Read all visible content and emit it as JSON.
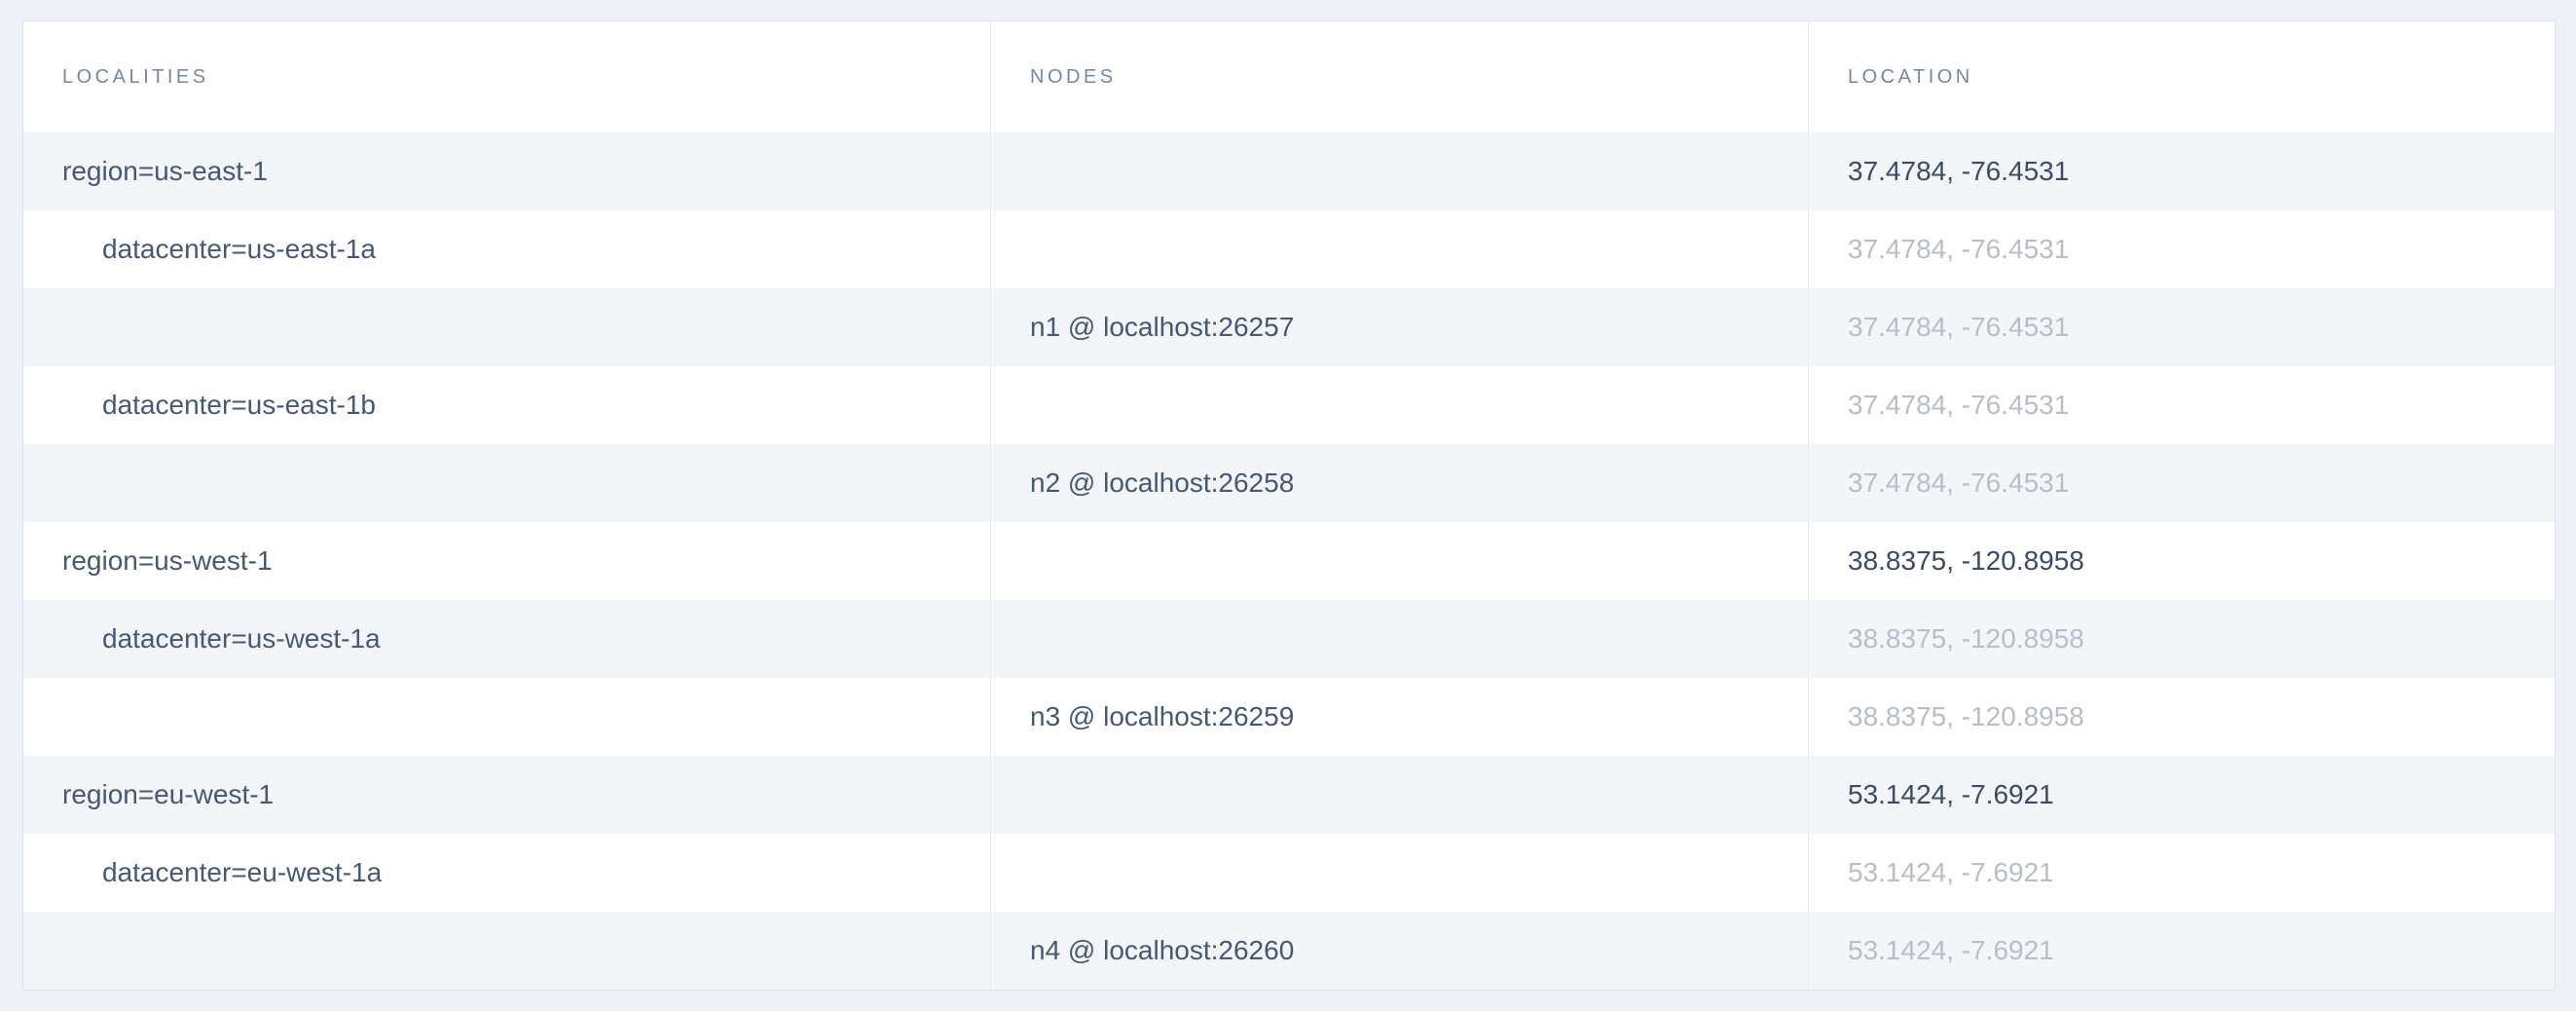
{
  "table": {
    "columns": [
      {
        "key": "localities",
        "label": "LOCALITIES"
      },
      {
        "key": "nodes",
        "label": "NODES"
      },
      {
        "key": "location",
        "label": "LOCATION"
      }
    ],
    "rows": [
      {
        "kind": "region",
        "locality": "region=us-east-1",
        "node": "",
        "location": "37.4784, -76.4531",
        "location_emphasis": "strong"
      },
      {
        "kind": "datacenter",
        "locality": "datacenter=us-east-1a",
        "node": "",
        "location": "37.4784, -76.4531",
        "location_emphasis": "muted"
      },
      {
        "kind": "node",
        "locality": "",
        "node": "n1 @ localhost:26257",
        "location": "37.4784, -76.4531",
        "location_emphasis": "muted"
      },
      {
        "kind": "datacenter",
        "locality": "datacenter=us-east-1b",
        "node": "",
        "location": "37.4784, -76.4531",
        "location_emphasis": "muted"
      },
      {
        "kind": "node",
        "locality": "",
        "node": "n2 @ localhost:26258",
        "location": "37.4784, -76.4531",
        "location_emphasis": "muted"
      },
      {
        "kind": "region",
        "locality": "region=us-west-1",
        "node": "",
        "location": "38.8375, -120.8958",
        "location_emphasis": "strong"
      },
      {
        "kind": "datacenter",
        "locality": "datacenter=us-west-1a",
        "node": "",
        "location": "38.8375, -120.8958",
        "location_emphasis": "muted"
      },
      {
        "kind": "node",
        "locality": "",
        "node": "n3 @ localhost:26259",
        "location": "38.8375, -120.8958",
        "location_emphasis": "muted"
      },
      {
        "kind": "region",
        "locality": "region=eu-west-1",
        "node": "",
        "location": "53.1424, -7.6921",
        "location_emphasis": "strong"
      },
      {
        "kind": "datacenter",
        "locality": "datacenter=eu-west-1a",
        "node": "",
        "location": "53.1424, -7.6921",
        "location_emphasis": "muted"
      },
      {
        "kind": "node",
        "locality": "",
        "node": "n4 @ localhost:26260",
        "location": "53.1424, -7.6921",
        "location_emphasis": "muted"
      }
    ]
  },
  "colors": {
    "page_background": "#eef1f7",
    "row_shade": "#f4f5f9",
    "row_white": "#ffffff",
    "table_border": "#dfe3eb",
    "column_divider": "#e7e9f0",
    "header_text": "#7b85a2",
    "body_text": "#475872",
    "location_strong_text": "#3d4a63",
    "location_muted_text": "#b9bdc7"
  }
}
